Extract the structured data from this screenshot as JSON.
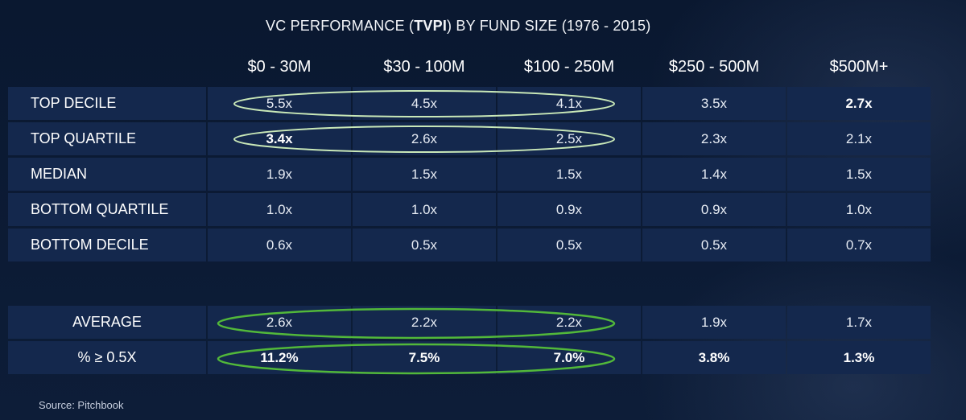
{
  "chart_data": {
    "type": "table",
    "title_prefix": "VC PERFORMANCE (",
    "title_bold": "TVPI",
    "title_suffix": ") BY FUND SIZE (1976 - 2015)",
    "columns": [
      "$0 - 30M",
      "$30 - 100M",
      "$100 - 250M",
      "$250 - 500M",
      "$500M+"
    ],
    "rows": [
      {
        "label": "TOP DECILE",
        "values": [
          "5.5x",
          "4.5x",
          "4.1x",
          "3.5x",
          "2.7x"
        ],
        "bold": [
          false,
          false,
          false,
          false,
          true
        ]
      },
      {
        "label": "TOP QUARTILE",
        "values": [
          "3.4x",
          "2.6x",
          "2.5x",
          "2.3x",
          "2.1x"
        ],
        "bold": [
          true,
          false,
          false,
          false,
          false
        ]
      },
      {
        "label": "MEDIAN",
        "values": [
          "1.9x",
          "1.5x",
          "1.5x",
          "1.4x",
          "1.5x"
        ],
        "bold": [
          false,
          false,
          false,
          false,
          false
        ]
      },
      {
        "label": "BOTTOM QUARTILE",
        "values": [
          "1.0x",
          "1.0x",
          "0.9x",
          "0.9x",
          "1.0x"
        ],
        "bold": [
          false,
          false,
          false,
          false,
          false
        ]
      },
      {
        "label": "BOTTOM DECILE",
        "values": [
          "0.6x",
          "0.5x",
          "0.5x",
          "0.5x",
          "0.7x"
        ],
        "bold": [
          false,
          false,
          false,
          false,
          false
        ]
      }
    ],
    "summary_rows": [
      {
        "label": "AVERAGE",
        "values": [
          "2.6x",
          "2.2x",
          "2.2x",
          "1.9x",
          "1.7x"
        ],
        "bold": [
          false,
          false,
          false,
          false,
          false
        ]
      },
      {
        "label": "% ≥ 0.5X",
        "values": [
          "11.2%",
          "7.5%",
          "7.0%",
          "3.8%",
          "1.3%"
        ],
        "bold": [
          true,
          true,
          true,
          true,
          true
        ]
      }
    ],
    "highlight_color_light": "#c9e8b8",
    "highlight_color_green": "#52b83a"
  },
  "source": "Source: Pitchbook",
  "colors": {
    "background": "#0b1a33",
    "cell": "#14284d"
  }
}
